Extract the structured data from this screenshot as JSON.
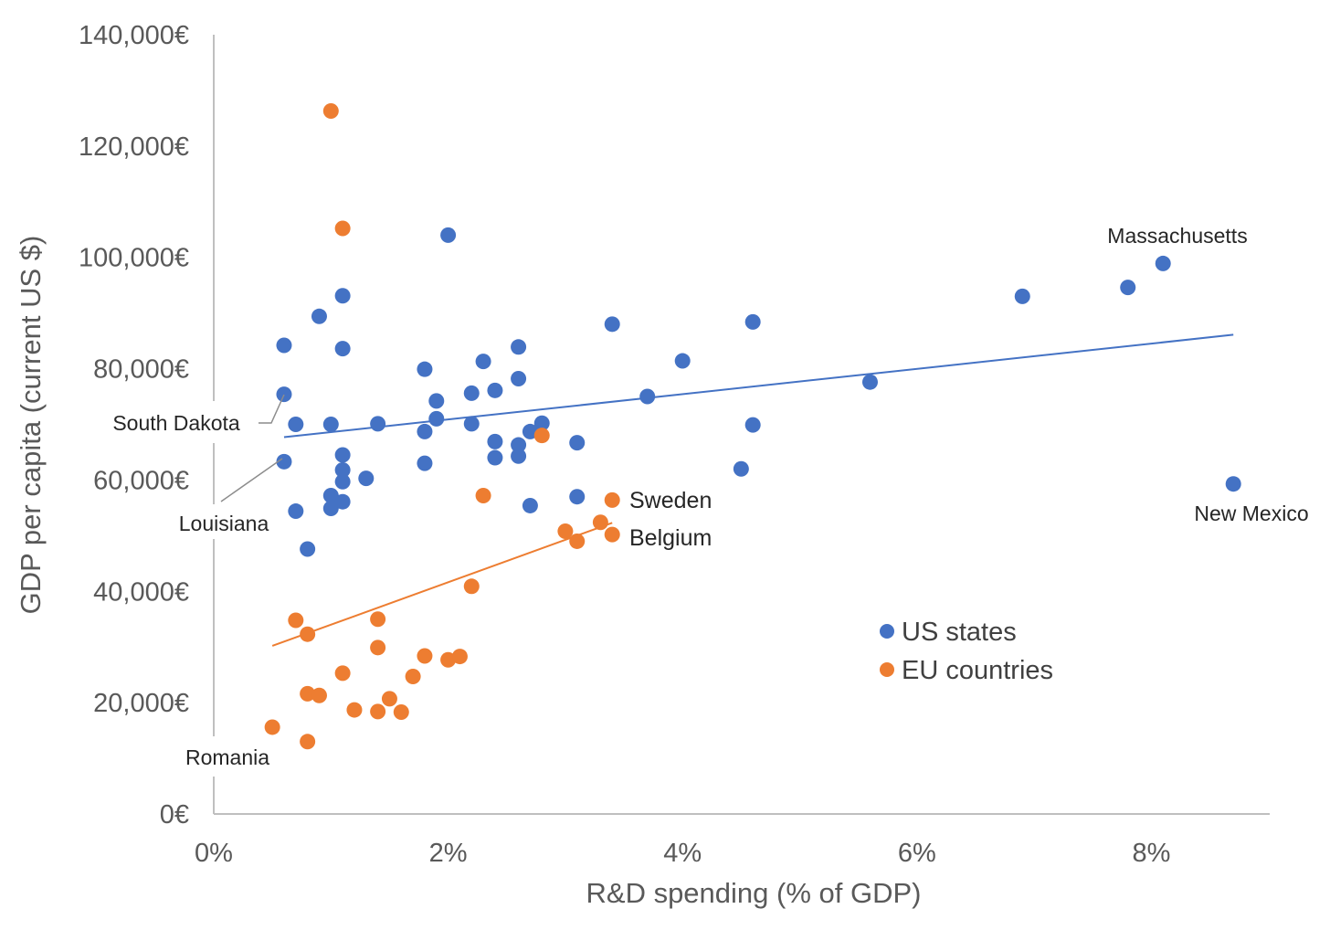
{
  "chart_data": {
    "type": "scatter",
    "title": "",
    "xlabel": "R&D spending (% of GDP)",
    "ylabel": "GDP per capita (current US $)",
    "xlim": [
      0,
      9
    ],
    "ylim": [
      0,
      140000
    ],
    "x_ticks": [
      0,
      2,
      4,
      6,
      8
    ],
    "x_tick_labels": [
      "0%",
      "2%",
      "4%",
      "6%",
      "8%"
    ],
    "y_ticks": [
      0,
      20000,
      40000,
      60000,
      80000,
      100000,
      120000,
      140000
    ],
    "y_tick_labels": [
      "0€",
      "20,000€",
      "40,000€",
      "60,000€",
      "80,000€",
      "100,000€",
      "120,000€",
      "140,000€"
    ],
    "grid": false,
    "legend_position": "bottom-right",
    "series": [
      {
        "name": "US states",
        "color": "#4472c4",
        "points": [
          [
            0.6,
            84200
          ],
          [
            0.6,
            75400
          ],
          [
            0.6,
            63300
          ],
          [
            0.7,
            70000
          ],
          [
            0.7,
            54400
          ],
          [
            0.8,
            47600
          ],
          [
            0.9,
            89400
          ],
          [
            1.0,
            70000
          ],
          [
            1.0,
            57200
          ],
          [
            1.0,
            54900
          ],
          [
            1.1,
            93100
          ],
          [
            1.1,
            83600
          ],
          [
            1.1,
            64500
          ],
          [
            1.1,
            61800
          ],
          [
            1.1,
            59700
          ],
          [
            1.1,
            56100
          ],
          [
            1.3,
            60300
          ],
          [
            1.4,
            70100
          ],
          [
            1.8,
            79900
          ],
          [
            1.8,
            68700
          ],
          [
            1.8,
            63000
          ],
          [
            1.9,
            74200
          ],
          [
            1.9,
            71000
          ],
          [
            2.0,
            104000
          ],
          [
            2.2,
            75600
          ],
          [
            2.2,
            70100
          ],
          [
            2.3,
            81300
          ],
          [
            2.4,
            76100
          ],
          [
            2.4,
            66900
          ],
          [
            2.4,
            64000
          ],
          [
            2.6,
            83900
          ],
          [
            2.6,
            78200
          ],
          [
            2.6,
            66300
          ],
          [
            2.6,
            64300
          ],
          [
            2.7,
            68700
          ],
          [
            2.7,
            55400
          ],
          [
            2.8,
            70200
          ],
          [
            3.1,
            66700
          ],
          [
            3.1,
            57000
          ],
          [
            3.4,
            88000
          ],
          [
            3.7,
            75000
          ],
          [
            4.0,
            81400
          ],
          [
            4.5,
            62000
          ],
          [
            4.6,
            88400
          ],
          [
            4.6,
            69900
          ],
          [
            5.6,
            77600
          ],
          [
            6.9,
            93000
          ],
          [
            7.8,
            94600
          ],
          [
            8.1,
            98900
          ],
          [
            8.7,
            59300
          ]
        ],
        "trendline": [
          [
            0.6,
            67700
          ],
          [
            8.7,
            86100
          ]
        ]
      },
      {
        "name": "EU countries",
        "color": "#ed7d31",
        "points": [
          [
            0.5,
            15600
          ],
          [
            0.7,
            34800
          ],
          [
            0.8,
            32300
          ],
          [
            0.8,
            21600
          ],
          [
            0.8,
            13000
          ],
          [
            0.9,
            21300
          ],
          [
            1.0,
            126300
          ],
          [
            1.1,
            105200
          ],
          [
            1.1,
            25300
          ],
          [
            1.2,
            18700
          ],
          [
            1.4,
            35000
          ],
          [
            1.4,
            29900
          ],
          [
            1.4,
            18400
          ],
          [
            1.5,
            20700
          ],
          [
            1.6,
            18300
          ],
          [
            1.7,
            24700
          ],
          [
            1.8,
            28400
          ],
          [
            2.0,
            27700
          ],
          [
            2.1,
            28300
          ],
          [
            2.2,
            40900
          ],
          [
            2.3,
            57200
          ],
          [
            2.8,
            68000
          ],
          [
            3.0,
            50800
          ],
          [
            3.1,
            49000
          ],
          [
            3.3,
            52400
          ],
          [
            3.4,
            56400
          ],
          [
            3.4,
            50200
          ]
        ],
        "trendline": [
          [
            0.5,
            30200
          ],
          [
            3.4,
            52300
          ]
        ]
      }
    ],
    "annotations": [
      {
        "text": "Massachusetts",
        "x": 8.1,
        "y": 98900
      },
      {
        "text": "New Mexico",
        "x": 8.7,
        "y": 59300
      },
      {
        "text": "South Dakota",
        "x": 0.6,
        "y": 75400
      },
      {
        "text": "Louisiana",
        "x": 0.6,
        "y": 63300
      },
      {
        "text": "Romania",
        "x": 0.8,
        "y": 13000
      },
      {
        "text": "Sweden",
        "x": 3.4,
        "y": 56400
      },
      {
        "text": "Belgium",
        "x": 3.4,
        "y": 50200
      }
    ]
  }
}
